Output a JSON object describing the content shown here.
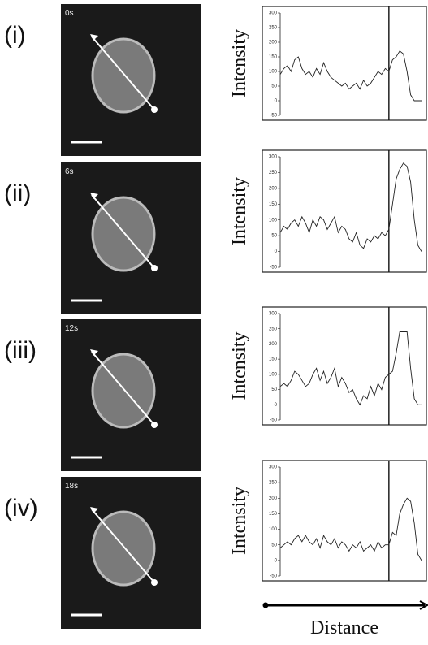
{
  "chart_data": [
    {
      "type": "line",
      "panel": "(i)",
      "time": "0s",
      "y_label": "Intensity",
      "ylim": [
        -50,
        300
      ],
      "yticks": [
        -50,
        0,
        50,
        100,
        150,
        200,
        250,
        300
      ],
      "vline": 30,
      "values": [
        90,
        110,
        120,
        100,
        140,
        150,
        110,
        90,
        100,
        80,
        110,
        90,
        130,
        100,
        80,
        70,
        60,
        50,
        60,
        40,
        50,
        60,
        40,
        70,
        50,
        60,
        80,
        100,
        90,
        110,
        100,
        140,
        150,
        170,
        160,
        100,
        20,
        0,
        0,
        0
      ]
    },
    {
      "type": "line",
      "panel": "(ii)",
      "time": "6s",
      "y_label": "Intensity",
      "ylim": [
        -50,
        300
      ],
      "yticks": [
        -50,
        0,
        50,
        100,
        150,
        200,
        250,
        300
      ],
      "vline": 30,
      "values": [
        60,
        80,
        70,
        90,
        100,
        80,
        110,
        90,
        60,
        100,
        80,
        110,
        100,
        70,
        90,
        110,
        60,
        80,
        70,
        40,
        30,
        60,
        20,
        10,
        40,
        30,
        50,
        40,
        60,
        50,
        70,
        150,
        230,
        260,
        280,
        270,
        220,
        100,
        20,
        0
      ]
    },
    {
      "type": "line",
      "panel": "(iii)",
      "time": "12s",
      "y_label": "Intensity",
      "ylim": [
        -50,
        300
      ],
      "yticks": [
        -50,
        0,
        50,
        100,
        150,
        200,
        250,
        300
      ],
      "vline": 30,
      "values": [
        60,
        70,
        60,
        80,
        110,
        100,
        80,
        60,
        70,
        100,
        120,
        80,
        110,
        70,
        90,
        120,
        60,
        90,
        70,
        40,
        50,
        20,
        0,
        30,
        20,
        60,
        30,
        70,
        50,
        90,
        100,
        110,
        170,
        240,
        240,
        240,
        120,
        20,
        0,
        0
      ]
    },
    {
      "type": "line",
      "panel": "(iv)",
      "time": "18s",
      "y_label": "Intensity",
      "x_label": "Distance",
      "ylim": [
        -50,
        300
      ],
      "yticks": [
        -50,
        0,
        50,
        100,
        150,
        200,
        250,
        300
      ],
      "vline": 30,
      "values": [
        40,
        50,
        60,
        50,
        70,
        80,
        60,
        80,
        60,
        50,
        70,
        40,
        80,
        60,
        50,
        70,
        40,
        60,
        50,
        30,
        50,
        40,
        60,
        30,
        40,
        50,
        30,
        60,
        40,
        50,
        50,
        90,
        80,
        150,
        180,
        200,
        190,
        120,
        20,
        0
      ]
    }
  ]
}
